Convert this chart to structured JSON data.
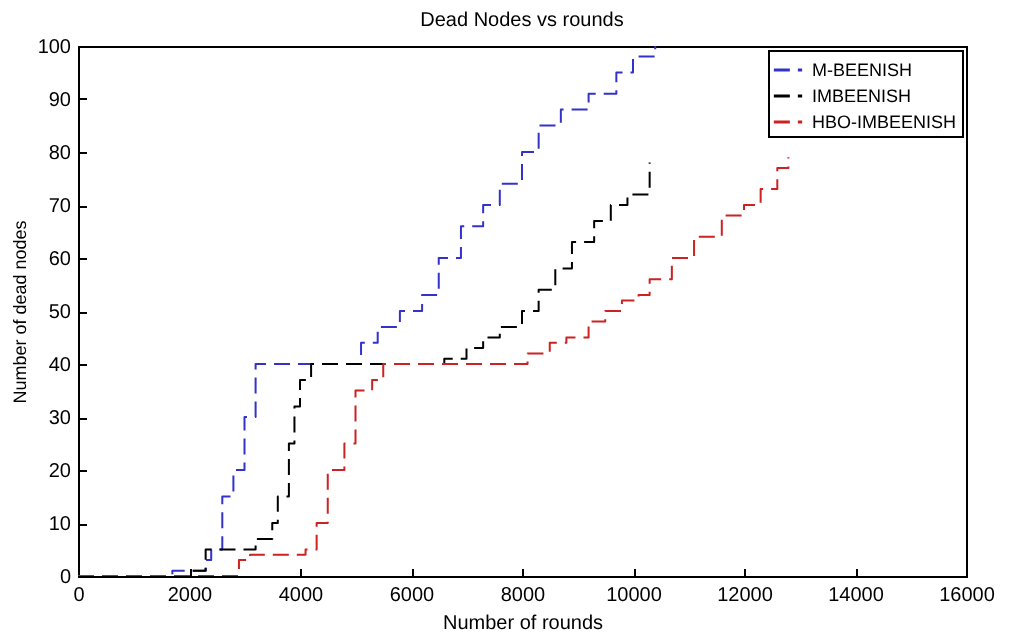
{
  "chart_data": {
    "type": "step",
    "title": "Dead Nodes vs rounds",
    "xlabel": "Number of rounds",
    "ylabel": "Number of dead nodes",
    "xlim": [
      0,
      16000
    ],
    "ylim": [
      0,
      100
    ],
    "xticks": [
      0,
      2000,
      4000,
      6000,
      8000,
      10000,
      12000,
      14000,
      16000
    ],
    "yticks": [
      0,
      10,
      20,
      30,
      40,
      50,
      60,
      70,
      80,
      90,
      100
    ],
    "legend": "top right",
    "line_style": "dashed",
    "grid": false,
    "series": [
      {
        "name": "M-BEENISH",
        "color": "#3333cc",
        "x": [
          0,
          1700,
          2300,
          2400,
          2600,
          2800,
          3000,
          3200,
          5000,
          5100,
          5400,
          5800,
          6200,
          6500,
          6900,
          7300,
          7600,
          8000,
          8300,
          8700,
          9200,
          9700,
          10000,
          10400
        ],
        "values": [
          0,
          1,
          3,
          5,
          15,
          20,
          30,
          40,
          40,
          44,
          47,
          50,
          53,
          60,
          66,
          70,
          74,
          80,
          85,
          88,
          91,
          95,
          98,
          100
        ]
      },
      {
        "name": "IMBEENISH",
        "color": "#000000",
        "x": [
          0,
          2000,
          2300,
          3200,
          3500,
          3600,
          3800,
          3900,
          4000,
          4200,
          6500,
          6600,
          7000,
          7300,
          7600,
          8000,
          8300,
          8600,
          8900,
          9300,
          9600,
          9900,
          10300
        ],
        "values": [
          0,
          1,
          5,
          7,
          10,
          15,
          25,
          32,
          37,
          40,
          40,
          41,
          43,
          45,
          47,
          50,
          54,
          58,
          63,
          67,
          70,
          72,
          78
        ]
      },
      {
        "name": "HBO-IMBEENISH",
        "color": "#cc2222",
        "x": [
          0,
          2900,
          3100,
          4100,
          4300,
          4500,
          4800,
          5000,
          5300,
          5500,
          8000,
          8100,
          8500,
          8800,
          9200,
          9500,
          9800,
          10100,
          10300,
          10700,
          11100,
          11600,
          12000,
          12300,
          12600,
          12800
        ],
        "values": [
          0,
          3,
          4,
          5,
          10,
          20,
          25,
          35,
          37,
          40,
          40,
          42,
          44,
          45,
          48,
          50,
          52,
          53,
          56,
          60,
          64,
          68,
          70,
          73,
          77,
          79
        ]
      }
    ]
  }
}
